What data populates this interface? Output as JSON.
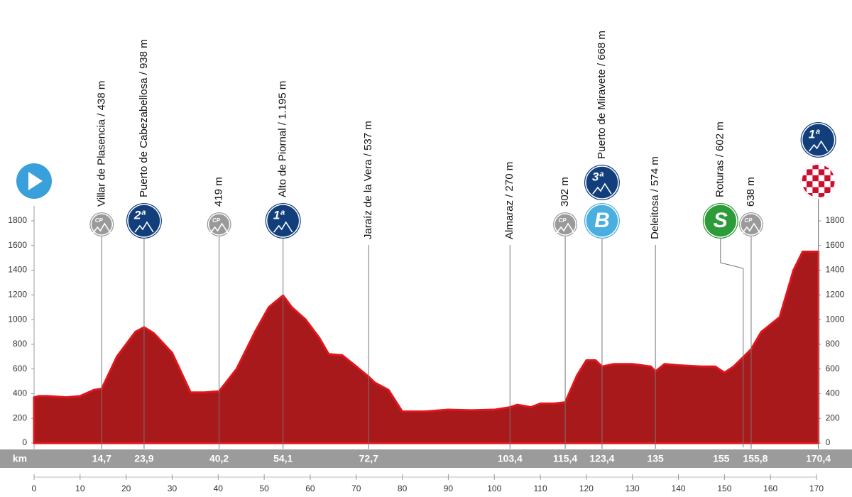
{
  "chart_data": {
    "type": "area",
    "x": [
      0,
      1,
      3,
      7,
      10,
      13,
      14.7,
      18,
      22,
      23.9,
      26,
      28,
      30,
      32,
      34,
      37,
      40.2,
      44,
      48,
      51,
      54.1,
      56,
      59,
      62,
      64,
      67,
      70,
      72.7,
      74,
      77,
      80,
      85,
      90,
      95,
      100,
      103.4,
      105,
      108,
      110,
      113,
      115.4,
      118,
      120,
      122,
      123.4,
      126,
      130,
      134,
      135,
      137,
      140,
      145,
      148,
      150,
      152,
      155,
      155.8,
      158,
      162,
      165,
      167,
      170.4
    ],
    "series": [
      {
        "color": "#a8191b",
        "values": [
          370,
          380,
          380,
          370,
          380,
          430,
          440,
          700,
          900,
          938,
          890,
          810,
          730,
          570,
          410,
          410,
          419,
          600,
          900,
          1100,
          1195,
          1100,
          1000,
          850,
          720,
          710,
          620,
          537,
          490,
          430,
          255,
          255,
          270,
          265,
          270,
          290,
          310,
          290,
          320,
          320,
          330,
          550,
          670,
          670,
          620,
          640,
          640,
          620,
          580,
          640,
          630,
          620,
          620,
          570,
          620,
          730,
          760,
          900,
          1020,
          1400,
          1550,
          1550
        ]
      }
    ],
    "xlim": [
      0,
      170.4
    ],
    "ylim": [
      0,
      1800
    ],
    "xticks": [
      0,
      10,
      20,
      30,
      40,
      50,
      60,
      70,
      80,
      90,
      100,
      110,
      120,
      130,
      140,
      150,
      160,
      170
    ],
    "yticks": [
      0,
      200,
      400,
      600,
      800,
      1000,
      1200,
      1400,
      1600,
      1800
    ],
    "km_label": "km",
    "km_marks": [
      {
        "value": 14.7,
        "label": "14,7"
      },
      {
        "value": 23.9,
        "label": "23,9"
      },
      {
        "value": 40.2,
        "label": "40,2"
      },
      {
        "value": 54.1,
        "label": "54,1"
      },
      {
        "value": 72.7,
        "label": "72,7"
      },
      {
        "value": 103.4,
        "label": "103,4"
      },
      {
        "value": 115.4,
        "label": "115,4"
      },
      {
        "value": 123.4,
        "label": "123,4"
      },
      135,
      155,
      {
        "value": 155.8,
        "label": "155,8"
      },
      {
        "value": 170.4,
        "label": "170,4"
      }
    ],
    "start_color": "#3aa0dc",
    "waypoints": [
      {
        "label": "Villar de Plasencia / 438 m",
        "icons": [
          {
            "text": "CP",
            "color": "#9a9a9a"
          }
        ]
      },
      {
        "label": "Puerto de Cabezabellosa / 938 m",
        "icons": [
          {
            "text": "2ª",
            "color": "#123f7c"
          }
        ]
      },
      {
        "label": "419 m",
        "icons": [
          {
            "text": "CP",
            "color": "#9a9a9a"
          }
        ]
      },
      {
        "label": "Alto de Piornal / 1.195 m",
        "icons": [
          {
            "text": "1ª",
            "color": "#123f7c"
          }
        ]
      },
      {
        "label": "Jaraíz de la Vera / 537 m",
        "icons": []
      },
      {
        "label": "Almaraz / 270 m",
        "icons": []
      },
      {
        "label": "302 m",
        "icons": [
          {
            "text": "CP",
            "color": "#9a9a9a"
          }
        ]
      },
      {
        "label": "Puerto de Miravete / 668 m",
        "icons": [
          {
            "text": "3ª",
            "color": "#123f7c"
          },
          {
            "text": "B",
            "color": "#4aaede"
          }
        ]
      },
      {
        "label": "Deleitosa / 574 m",
        "icons": []
      },
      {
        "label": "Roturas / 602 m",
        "icons": [
          {
            "text": "S",
            "color": "#2e9b3a"
          }
        ]
      },
      {
        "label": "638 m",
        "icons": [
          {
            "text": "CP",
            "color": "#9a9a9a"
          }
        ]
      },
      {
        "icons": [
          {
            "text": "1ª",
            "color": "#123f7c"
          },
          {
            "color": "#c8102e"
          }
        ]
      }
    ]
  }
}
